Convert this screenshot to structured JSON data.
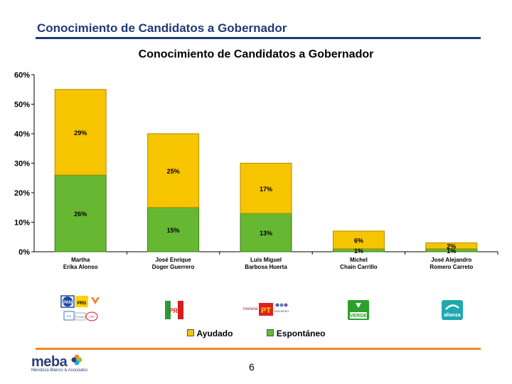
{
  "header": {
    "title": "Conocimiento de Candidatos a Gobernador"
  },
  "chart_data": {
    "type": "bar",
    "stacked": true,
    "title": "Conocimiento de Candidatos a Gobernador",
    "categories": [
      [
        "Martha",
        "Erika Alonso"
      ],
      [
        "José Enrique",
        "Doger Guerrero"
      ],
      [
        "Luis Miguel",
        "Barbosa Huerta"
      ],
      [
        "Michel",
        "Chain Carrillo"
      ],
      [
        "José Alejandro",
        "Romero Carreto"
      ]
    ],
    "series": [
      {
        "name": "Espontáneo",
        "values": [
          26,
          15,
          13,
          1,
          1
        ],
        "labels": [
          "26%",
          "15%",
          "13%",
          "1%",
          "1%"
        ],
        "color": "#66b832"
      },
      {
        "name": "Ayudado",
        "values": [
          29,
          25,
          17,
          6,
          2
        ],
        "labels": [
          "29%",
          "25%",
          "17%",
          "6%",
          "2%"
        ],
        "color": "#f6c500"
      }
    ],
    "yticks": [
      "0%",
      "10%",
      "20%",
      "30%",
      "40%",
      "50%",
      "60%"
    ],
    "ylim": [
      0,
      60
    ],
    "legend_position": "bottom",
    "grid": false
  },
  "logos": [
    {
      "name": "pan-prd-mc-coalition-logos",
      "labels": [
        "PAN",
        "PRD",
        "PSI",
        "Pacto",
        "CPP"
      ]
    },
    {
      "name": "pri-logo",
      "labels": [
        "PRI"
      ]
    },
    {
      "name": "morena-pt-pes-logos",
      "labels": [
        "morena",
        "PT",
        "encuentro"
      ]
    },
    {
      "name": "verde-logo",
      "labels": [
        "VERDE"
      ]
    },
    {
      "name": "nueva-alianza-logo",
      "labels": [
        "alianza"
      ]
    }
  ],
  "legend": {
    "ayudado": "Ayudado",
    "espontaneo": "Espontáneo"
  },
  "footer": {
    "page_number": "6",
    "brand": "meba",
    "brand_sub": "Mendoza Blanco & Asociados"
  },
  "colors": {
    "navy": "#1f3a7a",
    "orange": "#f08a24",
    "green": "#66b832",
    "yellow": "#f6c500"
  }
}
